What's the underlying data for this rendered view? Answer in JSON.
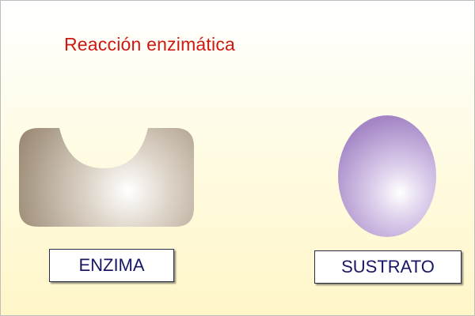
{
  "title": "Reacción enzimática",
  "colors": {
    "title": "#cc1a12",
    "label_text": "#171766",
    "enzyme_base": "#ac9e8a",
    "substrate_base": "#b39ad0"
  },
  "enzyme": {
    "label": "ENZIMA"
  },
  "substrate": {
    "label": "SUSTRATO"
  }
}
